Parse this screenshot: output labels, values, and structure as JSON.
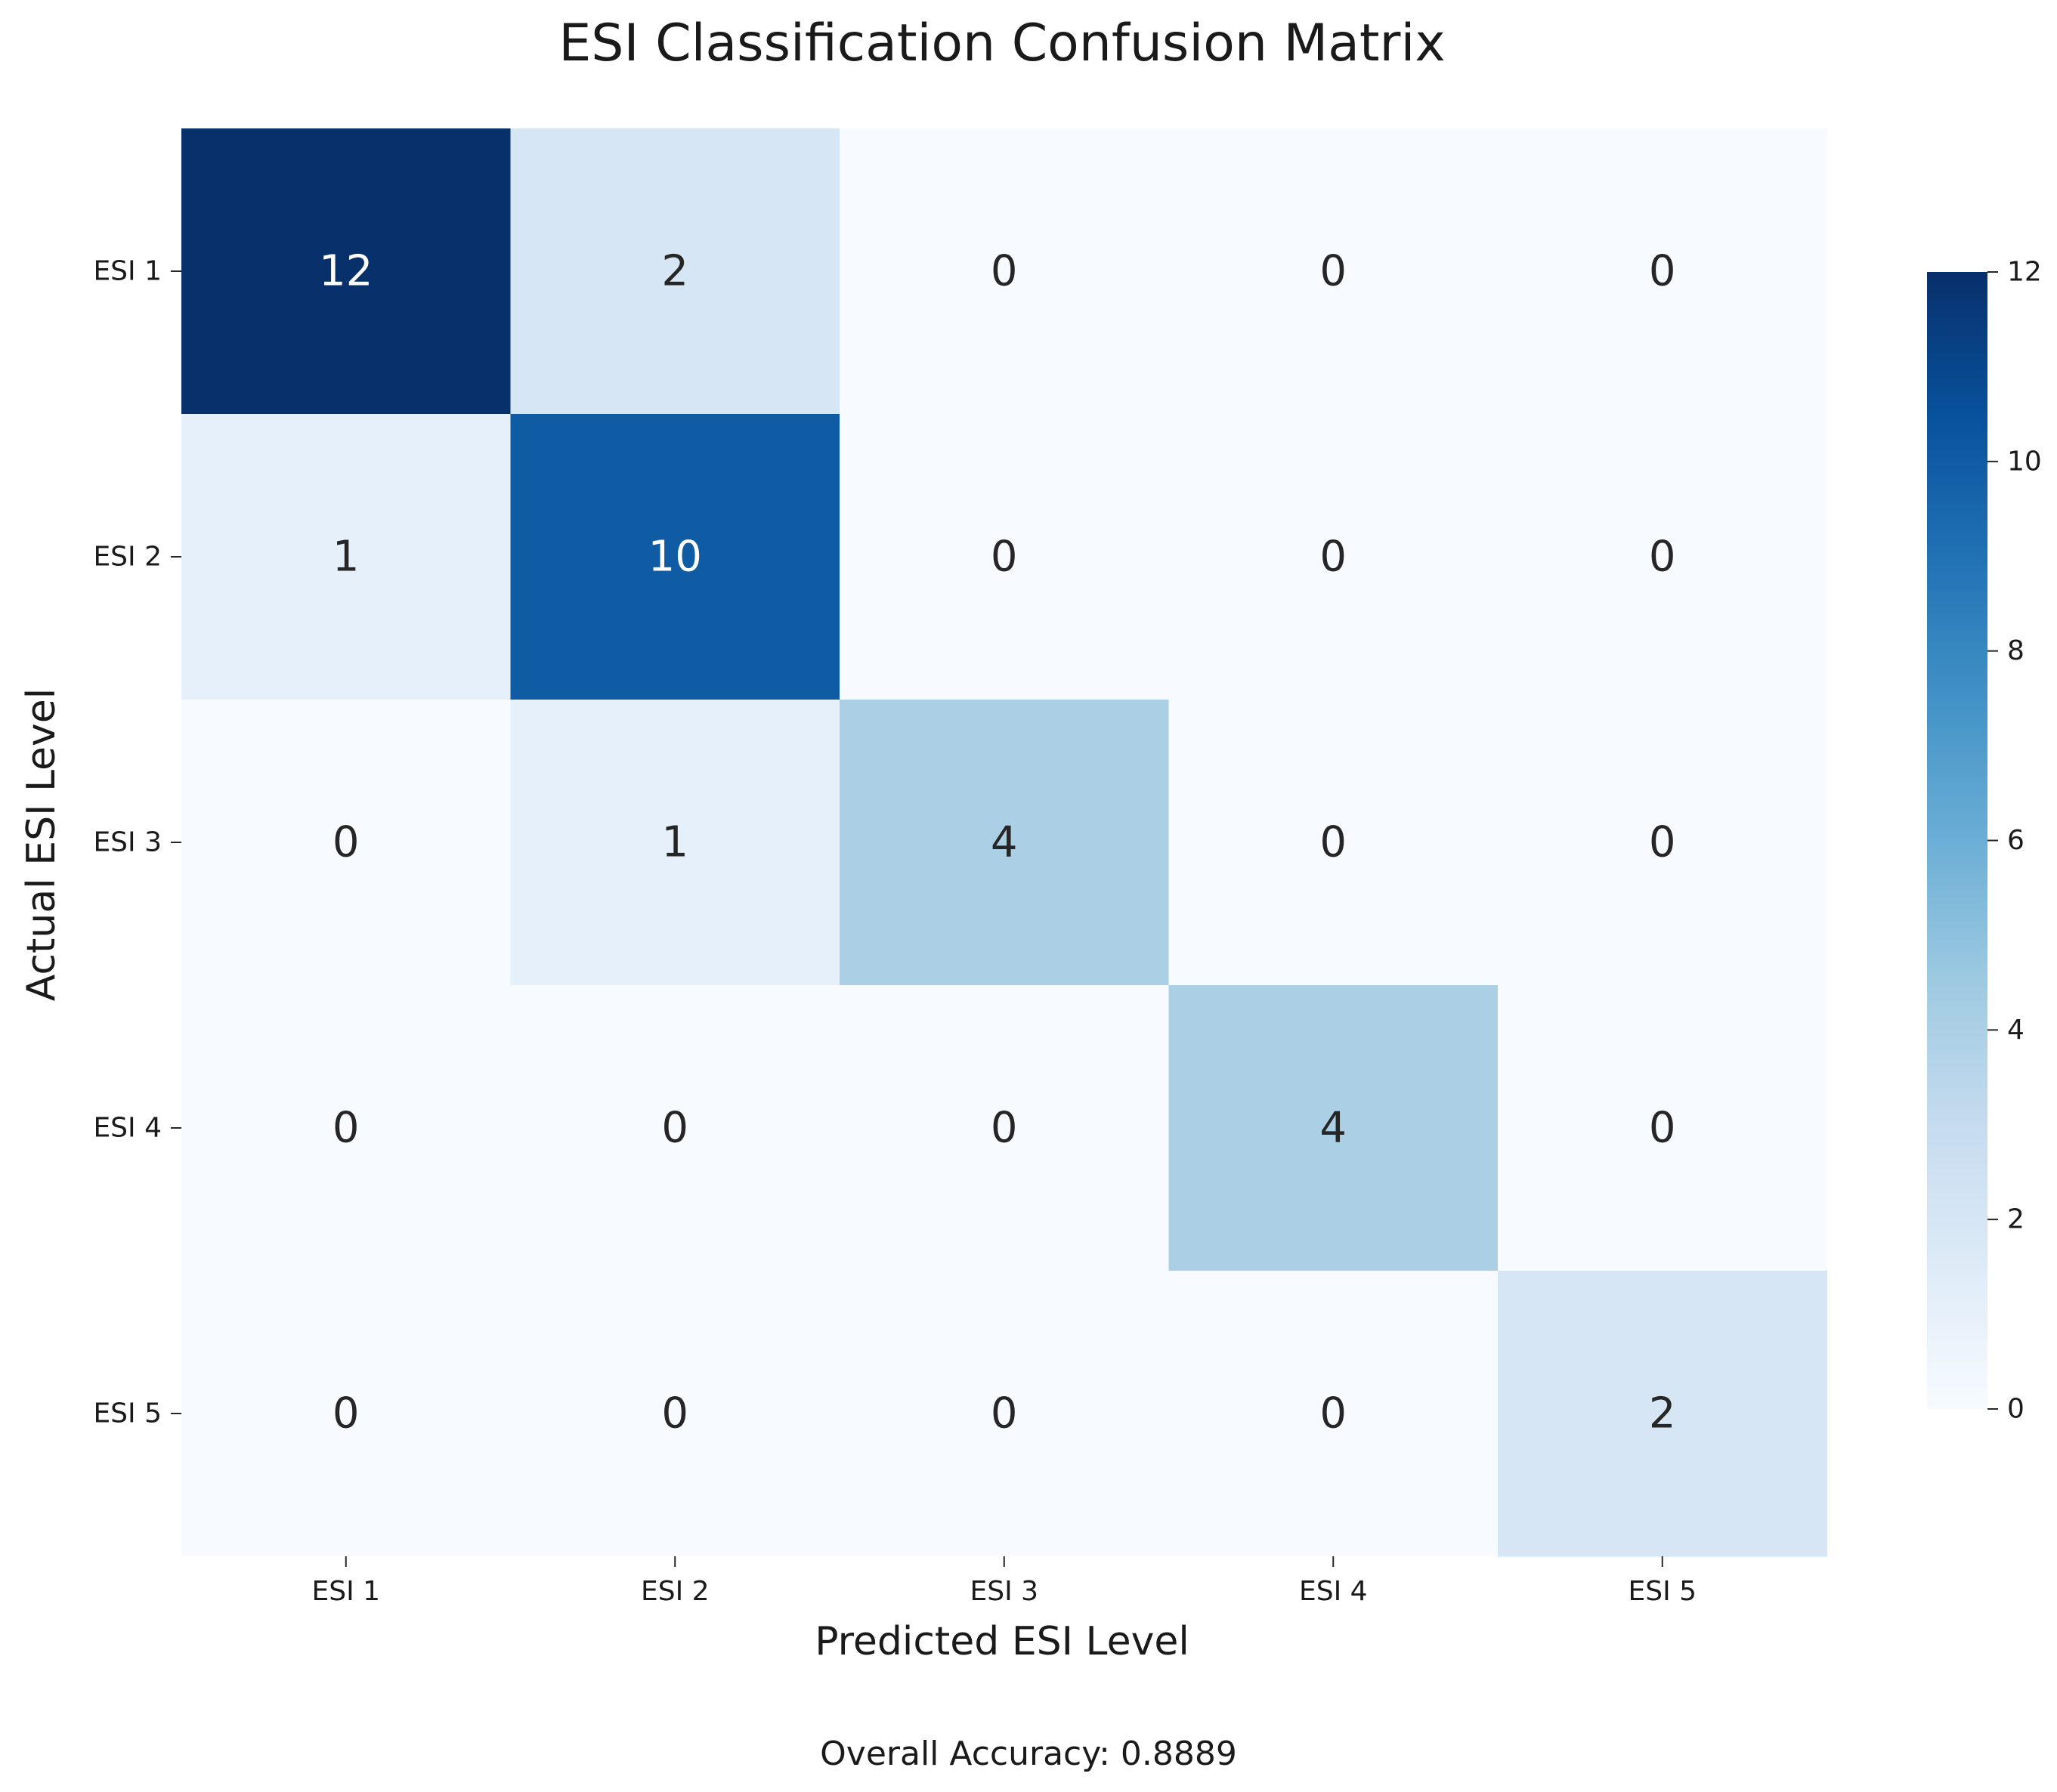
{
  "chart_data": {
    "type": "heatmap",
    "title": "ESI Classification Confusion Matrix",
    "xlabel": "Predicted ESI Level",
    "ylabel": "Actual ESI Level",
    "x_categories": [
      "ESI 1",
      "ESI 2",
      "ESI 3",
      "ESI 4",
      "ESI 5"
    ],
    "y_categories": [
      "ESI 1",
      "ESI 2",
      "ESI 3",
      "ESI 4",
      "ESI 5"
    ],
    "matrix": [
      [
        12,
        2,
        0,
        0,
        0
      ],
      [
        1,
        10,
        0,
        0,
        0
      ],
      [
        0,
        1,
        4,
        0,
        0
      ],
      [
        0,
        0,
        0,
        4,
        0
      ],
      [
        0,
        0,
        0,
        0,
        2
      ]
    ],
    "colormap": "Blues",
    "colorbar": {
      "range": [
        0,
        12
      ],
      "ticks": [
        0,
        2,
        4,
        6,
        8,
        10,
        12
      ]
    },
    "grid": false,
    "legend": "colorbar-right"
  },
  "footer": {
    "accuracy_text": "Overall Accuracy: 0.8889"
  }
}
